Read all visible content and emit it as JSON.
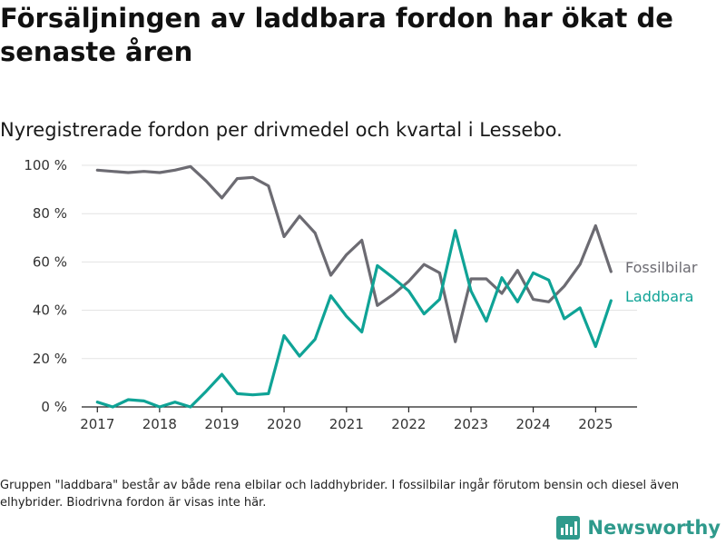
{
  "title": "Försäljningen av laddbara fordon har ökat de senaste åren",
  "subtitle": "Nyregistrerade fordon per drivmedel och kvartal i Lessebo.",
  "footnote": "Gruppen \"laddbara\" består av både rena elbilar och laddhybrider. I fossilbilar ingår förutom bensin och diesel även elhybrider. Biodrivna fordon är visas inte här.",
  "logo": {
    "text": "Newsworthy",
    "icon": "bar-chart-logo-icon",
    "color": "#2f9a8c"
  },
  "chart_data": {
    "type": "line",
    "x": [
      "2017-01-01",
      "2017-04-01",
      "2017-07-01",
      "2017-10-01",
      "2018-01-01",
      "2018-04-01",
      "2018-07-01",
      "2018-10-01",
      "2019-01-01",
      "2019-04-01",
      "2019-07-01",
      "2019-10-01",
      "2020-01-01",
      "2020-04-01",
      "2020-07-01",
      "2020-10-01",
      "2021-01-01",
      "2021-04-01",
      "2021-07-01",
      "2021-10-01",
      "2022-01-01",
      "2022-04-01",
      "2022-07-01",
      "2022-10-01",
      "2023-01-01",
      "2023-04-01",
      "2023-07-01",
      "2023-10-01",
      "2024-01-01",
      "2024-04-01",
      "2024-07-01",
      "2024-10-01",
      "2025-01-01",
      "2025-04-01"
    ],
    "series": [
      {
        "name": "Fossilbilar",
        "color": "#6c6b72",
        "values": [
          98,
          97.5,
          97,
          97.5,
          97,
          98,
          99.5,
          93.5,
          86.5,
          94.5,
          95,
          91.5,
          70.5,
          79,
          72,
          54.5,
          63,
          69,
          42,
          46.5,
          52,
          59,
          55.5,
          27,
          53,
          53,
          47,
          56.5,
          44.5,
          43.5,
          50,
          59,
          75,
          56
        ]
      },
      {
        "name": "Laddbara",
        "color": "#0fa396",
        "values": [
          2,
          0,
          3,
          2.5,
          0,
          2,
          0,
          6.5,
          13.5,
          5.5,
          5,
          5.5,
          29.5,
          21,
          28,
          46,
          37.5,
          31,
          58.5,
          53.5,
          48,
          38.5,
          44.5,
          73,
          48,
          35.5,
          53.5,
          43.5,
          55.5,
          52.5,
          36.5,
          41,
          25,
          44
        ]
      }
    ],
    "x_ticks": [
      "2017",
      "2018",
      "2019",
      "2020",
      "2021",
      "2022",
      "2023",
      "2024",
      "2025"
    ],
    "y_ticks": [
      "0 %",
      "20 %",
      "40 %",
      "60 %",
      "80 %",
      "100 %"
    ],
    "ylim": [
      0,
      100
    ],
    "grid": true,
    "legend": "inline-right"
  }
}
